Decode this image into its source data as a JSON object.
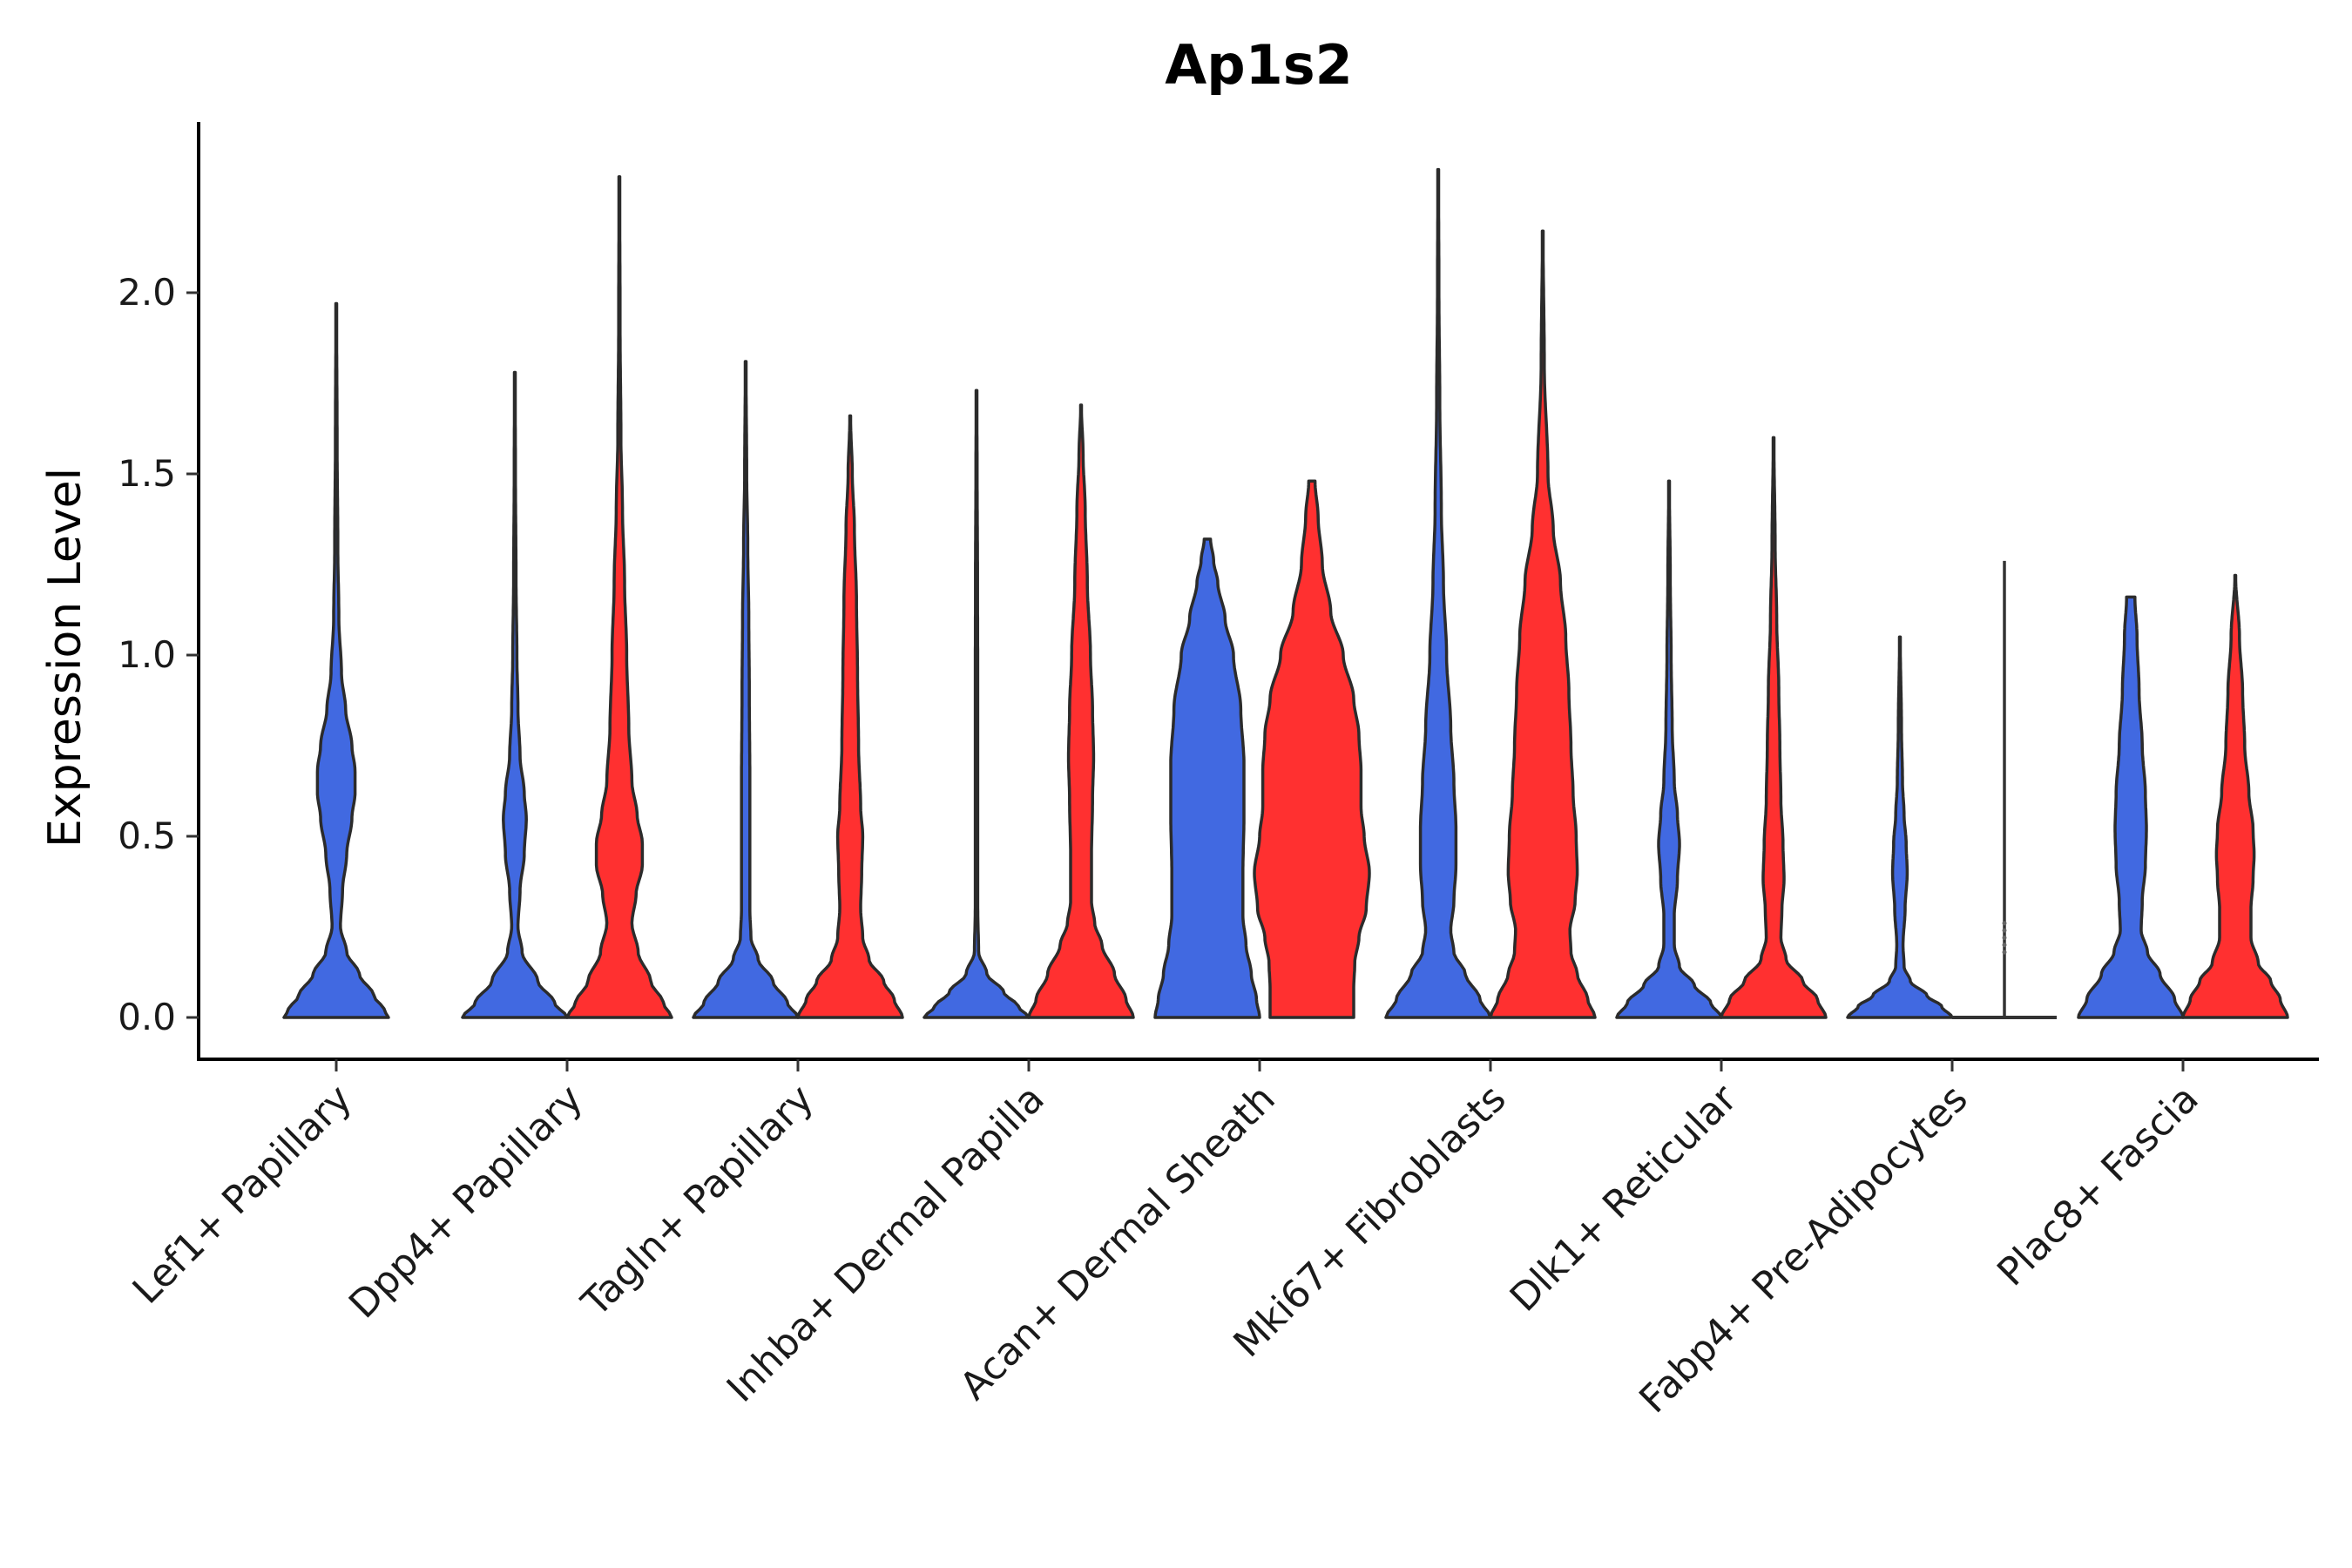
{
  "chart_data": {
    "type": "violin",
    "title": "Ap1s2",
    "xlabel": "",
    "ylabel": "Expression Level",
    "ylim": [
      -0.12,
      2.47
    ],
    "yticks": [
      "0.0",
      "0.5",
      "1.0",
      "1.5",
      "2.0"
    ],
    "ytick_values": [
      0,
      0.5,
      1.0,
      1.5,
      2.0
    ],
    "categories": [
      "Lef1+ Papillary",
      "Dpp4+ Papillary",
      "Tagln+ Papillary",
      "Inhba+ Dermal Papilla",
      "Acan+ Dermal Sheath",
      "Mki67+ Fibroblasts",
      "Dlk1+ Reticular",
      "Fabp4+ Pre-Adipocytes",
      "Plac8+ Fascia"
    ],
    "series_colors": {
      "blue": "#4169E1",
      "red": "#FF3030"
    },
    "violins": [
      {
        "category_index": 0,
        "side": "center",
        "series": "blue",
        "max": 1.97,
        "profile": [
          [
            0.0,
            0.5
          ],
          [
            0.02,
            0.46
          ],
          [
            0.06,
            0.36
          ],
          [
            0.12,
            0.22
          ],
          [
            0.18,
            0.1
          ],
          [
            0.25,
            0.04
          ],
          [
            0.35,
            0.06
          ],
          [
            0.45,
            0.1
          ],
          [
            0.55,
            0.15
          ],
          [
            0.62,
            0.18
          ],
          [
            0.68,
            0.18
          ],
          [
            0.75,
            0.15
          ],
          [
            0.85,
            0.09
          ],
          [
            0.95,
            0.05
          ],
          [
            1.1,
            0.025
          ],
          [
            1.3,
            0.015
          ],
          [
            1.6,
            0.008
          ],
          [
            1.97,
            0.003
          ]
        ]
      },
      {
        "category_index": 1,
        "side": "left",
        "series": "blue",
        "max": 1.78,
        "profile": [
          [
            0.0,
            0.5
          ],
          [
            0.04,
            0.38
          ],
          [
            0.1,
            0.22
          ],
          [
            0.18,
            0.07
          ],
          [
            0.25,
            0.03
          ],
          [
            0.35,
            0.05
          ],
          [
            0.45,
            0.09
          ],
          [
            0.55,
            0.11
          ],
          [
            0.62,
            0.09
          ],
          [
            0.72,
            0.05
          ],
          [
            0.85,
            0.03
          ],
          [
            1.0,
            0.02
          ],
          [
            1.2,
            0.012
          ],
          [
            1.5,
            0.006
          ],
          [
            1.78,
            0.003
          ]
        ]
      },
      {
        "category_index": 1,
        "side": "right",
        "series": "red",
        "max": 2.32,
        "profile": [
          [
            0.0,
            0.5
          ],
          [
            0.04,
            0.42
          ],
          [
            0.1,
            0.3
          ],
          [
            0.18,
            0.18
          ],
          [
            0.26,
            0.12
          ],
          [
            0.34,
            0.16
          ],
          [
            0.42,
            0.22
          ],
          [
            0.48,
            0.22
          ],
          [
            0.56,
            0.17
          ],
          [
            0.65,
            0.12
          ],
          [
            0.8,
            0.09
          ],
          [
            1.0,
            0.07
          ],
          [
            1.2,
            0.05
          ],
          [
            1.4,
            0.03
          ],
          [
            1.6,
            0.015
          ],
          [
            1.9,
            0.007
          ],
          [
            2.32,
            0.003
          ]
        ]
      },
      {
        "category_index": 2,
        "side": "left",
        "series": "blue",
        "max": 1.81,
        "profile": [
          [
            0.0,
            0.5
          ],
          [
            0.04,
            0.4
          ],
          [
            0.1,
            0.26
          ],
          [
            0.16,
            0.12
          ],
          [
            0.22,
            0.05
          ],
          [
            0.3,
            0.04
          ],
          [
            0.45,
            0.04
          ],
          [
            0.65,
            0.04
          ],
          [
            0.9,
            0.035
          ],
          [
            1.1,
            0.03
          ],
          [
            1.3,
            0.02
          ],
          [
            1.5,
            0.01
          ],
          [
            1.81,
            0.003
          ]
        ]
      },
      {
        "category_index": 2,
        "side": "right",
        "series": "red",
        "max": 1.66,
        "profile": [
          [
            0.0,
            0.5
          ],
          [
            0.05,
            0.42
          ],
          [
            0.1,
            0.32
          ],
          [
            0.16,
            0.18
          ],
          [
            0.22,
            0.12
          ],
          [
            0.3,
            0.1
          ],
          [
            0.4,
            0.11
          ],
          [
            0.5,
            0.12
          ],
          [
            0.58,
            0.1
          ],
          [
            0.75,
            0.08
          ],
          [
            0.95,
            0.07
          ],
          [
            1.15,
            0.06
          ],
          [
            1.35,
            0.04
          ],
          [
            1.5,
            0.02
          ],
          [
            1.66,
            0.003
          ]
        ]
      },
      {
        "category_index": 3,
        "side": "left",
        "series": "blue",
        "max": 1.73,
        "profile": [
          [
            0.0,
            0.5
          ],
          [
            0.03,
            0.4
          ],
          [
            0.07,
            0.26
          ],
          [
            0.12,
            0.1
          ],
          [
            0.18,
            0.02
          ],
          [
            0.3,
            0.012
          ],
          [
            0.6,
            0.012
          ],
          [
            0.9,
            0.012
          ],
          [
            1.2,
            0.01
          ],
          [
            1.5,
            0.006
          ],
          [
            1.73,
            0.003
          ]
        ]
      },
      {
        "category_index": 3,
        "side": "right",
        "series": "red",
        "max": 1.69,
        "profile": [
          [
            0.0,
            0.5
          ],
          [
            0.05,
            0.43
          ],
          [
            0.12,
            0.32
          ],
          [
            0.2,
            0.2
          ],
          [
            0.26,
            0.13
          ],
          [
            0.32,
            0.1
          ],
          [
            0.45,
            0.1
          ],
          [
            0.6,
            0.11
          ],
          [
            0.72,
            0.12
          ],
          [
            0.85,
            0.11
          ],
          [
            1.0,
            0.09
          ],
          [
            1.2,
            0.06
          ],
          [
            1.4,
            0.04
          ],
          [
            1.55,
            0.02
          ],
          [
            1.69,
            0.003
          ]
        ]
      },
      {
        "category_index": 4,
        "side": "left",
        "series": "blue",
        "max": 1.32,
        "profile": [
          [
            0.0,
            0.5
          ],
          [
            0.05,
            0.47
          ],
          [
            0.12,
            0.42
          ],
          [
            0.2,
            0.37
          ],
          [
            0.28,
            0.34
          ],
          [
            0.4,
            0.34
          ],
          [
            0.55,
            0.35
          ],
          [
            0.7,
            0.35
          ],
          [
            0.85,
            0.32
          ],
          [
            1.0,
            0.25
          ],
          [
            1.1,
            0.17
          ],
          [
            1.2,
            0.1
          ],
          [
            1.26,
            0.06
          ],
          [
            1.32,
            0.03
          ]
        ]
      },
      {
        "category_index": 4,
        "side": "right",
        "series": "red",
        "max": 1.48,
        "profile": [
          [
            0.0,
            0.4
          ],
          [
            0.08,
            0.4
          ],
          [
            0.15,
            0.41
          ],
          [
            0.22,
            0.45
          ],
          [
            0.3,
            0.52
          ],
          [
            0.4,
            0.55
          ],
          [
            0.5,
            0.5
          ],
          [
            0.58,
            0.47
          ],
          [
            0.68,
            0.47
          ],
          [
            0.78,
            0.45
          ],
          [
            0.88,
            0.4
          ],
          [
            1.0,
            0.3
          ],
          [
            1.12,
            0.18
          ],
          [
            1.25,
            0.1
          ],
          [
            1.38,
            0.06
          ],
          [
            1.48,
            0.03
          ]
        ]
      },
      {
        "category_index": 5,
        "side": "left",
        "series": "blue",
        "max": 2.34,
        "profile": [
          [
            0.0,
            0.5
          ],
          [
            0.05,
            0.4
          ],
          [
            0.12,
            0.26
          ],
          [
            0.18,
            0.15
          ],
          [
            0.24,
            0.12
          ],
          [
            0.32,
            0.15
          ],
          [
            0.42,
            0.17
          ],
          [
            0.52,
            0.17
          ],
          [
            0.65,
            0.15
          ],
          [
            0.8,
            0.12
          ],
          [
            1.0,
            0.08
          ],
          [
            1.2,
            0.05
          ],
          [
            1.4,
            0.03
          ],
          [
            1.7,
            0.015
          ],
          [
            2.0,
            0.007
          ],
          [
            2.34,
            0.003
          ]
        ]
      },
      {
        "category_index": 5,
        "side": "right",
        "series": "red",
        "max": 2.17,
        "profile": [
          [
            0.0,
            0.5
          ],
          [
            0.05,
            0.43
          ],
          [
            0.12,
            0.33
          ],
          [
            0.18,
            0.27
          ],
          [
            0.24,
            0.26
          ],
          [
            0.32,
            0.31
          ],
          [
            0.4,
            0.33
          ],
          [
            0.5,
            0.32
          ],
          [
            0.62,
            0.29
          ],
          [
            0.75,
            0.27
          ],
          [
            0.9,
            0.25
          ],
          [
            1.05,
            0.22
          ],
          [
            1.2,
            0.17
          ],
          [
            1.35,
            0.1
          ],
          [
            1.5,
            0.05
          ],
          [
            1.8,
            0.015
          ],
          [
            2.17,
            0.003
          ]
        ]
      },
      {
        "category_index": 6,
        "side": "left",
        "series": "blue",
        "max": 1.48,
        "profile": [
          [
            0.0,
            0.5
          ],
          [
            0.04,
            0.4
          ],
          [
            0.09,
            0.24
          ],
          [
            0.14,
            0.1
          ],
          [
            0.2,
            0.05
          ],
          [
            0.28,
            0.05
          ],
          [
            0.38,
            0.08
          ],
          [
            0.48,
            0.1
          ],
          [
            0.56,
            0.08
          ],
          [
            0.65,
            0.05
          ],
          [
            0.8,
            0.03
          ],
          [
            1.0,
            0.02
          ],
          [
            1.2,
            0.012
          ],
          [
            1.48,
            0.003
          ]
        ]
      },
      {
        "category_index": 6,
        "side": "right",
        "series": "red",
        "max": 1.6,
        "profile": [
          [
            0.0,
            0.5
          ],
          [
            0.05,
            0.42
          ],
          [
            0.1,
            0.28
          ],
          [
            0.16,
            0.12
          ],
          [
            0.22,
            0.07
          ],
          [
            0.3,
            0.08
          ],
          [
            0.38,
            0.1
          ],
          [
            0.48,
            0.09
          ],
          [
            0.6,
            0.07
          ],
          [
            0.75,
            0.06
          ],
          [
            0.9,
            0.05
          ],
          [
            1.1,
            0.03
          ],
          [
            1.3,
            0.015
          ],
          [
            1.6,
            0.003
          ]
        ]
      },
      {
        "category_index": 7,
        "side": "left",
        "series": "blue",
        "max": 1.05,
        "profile": [
          [
            0.0,
            0.5
          ],
          [
            0.03,
            0.4
          ],
          [
            0.06,
            0.26
          ],
          [
            0.1,
            0.1
          ],
          [
            0.14,
            0.04
          ],
          [
            0.2,
            0.03
          ],
          [
            0.3,
            0.05
          ],
          [
            0.4,
            0.07
          ],
          [
            0.48,
            0.06
          ],
          [
            0.56,
            0.04
          ],
          [
            0.65,
            0.025
          ],
          [
            0.8,
            0.015
          ],
          [
            1.05,
            0.003
          ]
        ]
      },
      {
        "category_index": 7,
        "side": "right",
        "series": "red",
        "max": 0.0,
        "profile": [
          [
            0.0,
            0.5
          ]
        ],
        "degenerate": true,
        "whisker_max": 1.26,
        "points": [
          0.18,
          0.2,
          0.22,
          0.24,
          0.26
        ]
      },
      {
        "category_index": 8,
        "side": "left",
        "series": "blue",
        "max": 1.16,
        "profile": [
          [
            0.0,
            0.5
          ],
          [
            0.05,
            0.42
          ],
          [
            0.12,
            0.28
          ],
          [
            0.18,
            0.16
          ],
          [
            0.24,
            0.1
          ],
          [
            0.32,
            0.11
          ],
          [
            0.42,
            0.14
          ],
          [
            0.52,
            0.15
          ],
          [
            0.62,
            0.14
          ],
          [
            0.75,
            0.11
          ],
          [
            0.9,
            0.08
          ],
          [
            1.05,
            0.06
          ],
          [
            1.16,
            0.04
          ]
        ]
      },
      {
        "category_index": 8,
        "side": "right",
        "series": "red",
        "max": 1.22,
        "profile": [
          [
            0.0,
            0.5
          ],
          [
            0.05,
            0.43
          ],
          [
            0.1,
            0.34
          ],
          [
            0.15,
            0.22
          ],
          [
            0.22,
            0.15
          ],
          [
            0.3,
            0.15
          ],
          [
            0.38,
            0.17
          ],
          [
            0.45,
            0.18
          ],
          [
            0.52,
            0.17
          ],
          [
            0.62,
            0.13
          ],
          [
            0.75,
            0.09
          ],
          [
            0.9,
            0.07
          ],
          [
            1.05,
            0.04
          ],
          [
            1.22,
            0.003
          ]
        ]
      }
    ]
  }
}
